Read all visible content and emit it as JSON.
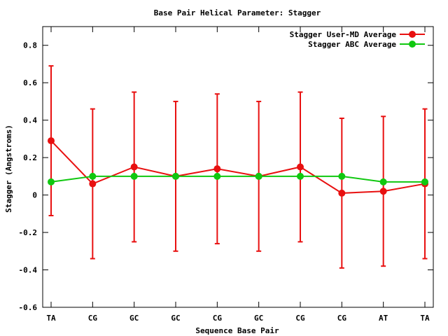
{
  "chart_data": {
    "type": "line",
    "title": "Base Pair Helical Parameter: Stagger",
    "xlabel": "Sequence Base Pair",
    "ylabel": "Stagger (Angstroms)",
    "categories": [
      "TA",
      "CG",
      "GC",
      "GC",
      "CG",
      "GC",
      "CG",
      "CG",
      "AT",
      "TA"
    ],
    "ylim": [
      -0.6,
      0.9
    ],
    "yticks": [
      {
        "value": 0.8,
        "label": "0.8"
      },
      {
        "value": 0.6,
        "label": "0.6"
      },
      {
        "value": 0.4,
        "label": "0.4"
      },
      {
        "value": 0.2,
        "label": "0.2"
      },
      {
        "value": 0,
        "label": "0"
      },
      {
        "value": -0.2,
        "label": "-0.2"
      },
      {
        "value": -0.4,
        "label": "-0.4"
      },
      {
        "value": -0.6,
        "label": "-0.6"
      }
    ],
    "grid": false,
    "legend_position": "top-right",
    "series": [
      {
        "name": "Stagger User-MD Average",
        "color": "#e81010",
        "values": [
          0.29,
          0.06,
          0.15,
          0.1,
          0.14,
          0.1,
          0.15,
          0.01,
          0.02,
          0.06
        ],
        "error_low": [
          -0.11,
          -0.34,
          -0.25,
          -0.3,
          -0.26,
          -0.3,
          -0.25,
          -0.39,
          -0.38,
          -0.34
        ],
        "error_high": [
          0.69,
          0.46,
          0.55,
          0.5,
          0.54,
          0.5,
          0.55,
          0.41,
          0.42,
          0.46
        ]
      },
      {
        "name": "Stagger ABC Average",
        "color": "#10c810",
        "values": [
          0.07,
          0.1,
          0.1,
          0.1,
          0.1,
          0.1,
          0.1,
          0.1,
          0.07,
          0.07
        ]
      }
    ]
  }
}
